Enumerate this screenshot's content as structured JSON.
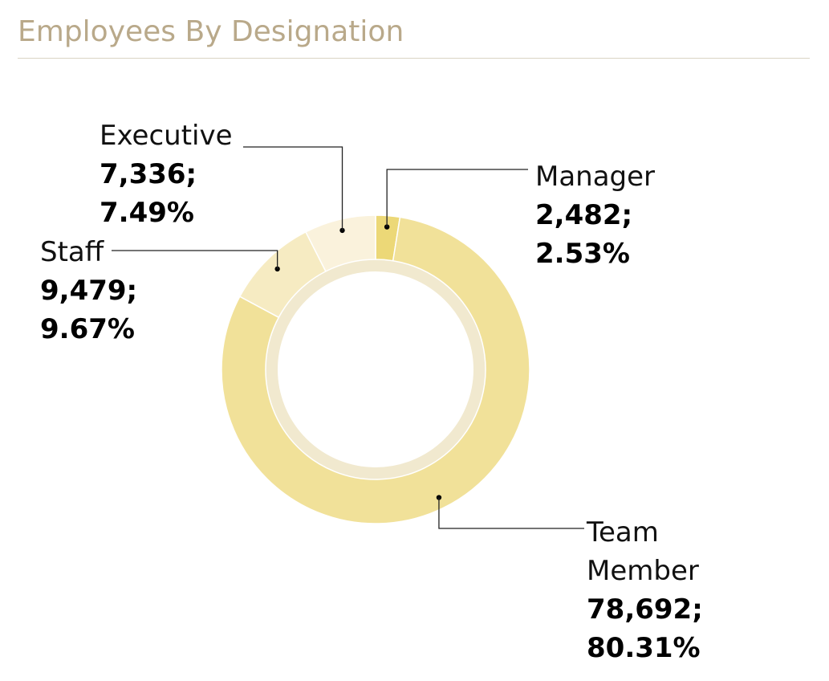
{
  "title": "Employees By Designation",
  "chart_data": {
    "type": "pie",
    "variant": "donut",
    "categories": [
      "Manager",
      "Team Member",
      "Staff",
      "Executive"
    ],
    "values": [
      2482,
      78692,
      9479,
      7336
    ],
    "percentages": [
      "2.53%",
      "80.31%",
      "9.67%",
      "7.49%"
    ],
    "value_labels": [
      "2,482;",
      "78,692;",
      "9,479;",
      "7,336;"
    ],
    "label_lines": [
      [
        "Manager"
      ],
      [
        "Team",
        "Member"
      ],
      [
        "Staff"
      ],
      [
        "Executive"
      ]
    ],
    "colors": [
      "#ecd877",
      "#f1e199",
      "#f6ebc2",
      "#faf2dc"
    ],
    "inner_ring_color": "#f1e9cf"
  }
}
